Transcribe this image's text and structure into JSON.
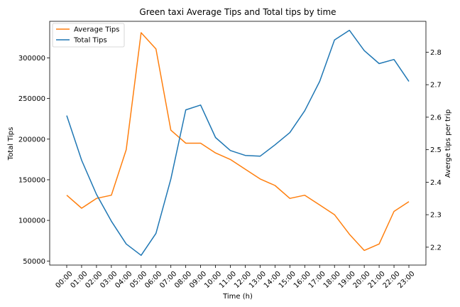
{
  "chart_data": {
    "type": "line",
    "title": "Green taxi Average Tips and Total tips by time",
    "xlabel": "Time (h)",
    "ylabel_left": "Total Tips",
    "ylabel_right": "Averge tips per trip",
    "categories": [
      "00:00",
      "01:00",
      "02:00",
      "03:00",
      "04:00",
      "05:00",
      "06:00",
      "07:00",
      "08:00",
      "09:00",
      "10:00",
      "11:00",
      "12:00",
      "13:00",
      "14:00",
      "15:00",
      "16:00",
      "17:00",
      "18:00",
      "19:00",
      "20:00",
      "21:00",
      "22:00",
      "23:00"
    ],
    "left_axis": {
      "ylim": [
        45000,
        345000
      ],
      "ticks": [
        50000,
        100000,
        150000,
        200000,
        250000,
        300000
      ]
    },
    "right_axis": {
      "ylim": [
        2.145,
        2.895
      ],
      "ticks": [
        2.2,
        2.3,
        2.4,
        2.5,
        2.6,
        2.7,
        2.8
      ]
    },
    "series": [
      {
        "name": "Average Tips",
        "axis": "right",
        "color": "#ff7f0e",
        "values": [
          2.36,
          2.32,
          2.35,
          2.36,
          2.5,
          2.86,
          2.81,
          2.56,
          2.52,
          2.52,
          2.49,
          2.47,
          2.44,
          2.41,
          2.39,
          2.35,
          2.36,
          2.33,
          2.3,
          2.24,
          2.19,
          2.21,
          2.31,
          2.34
        ]
      },
      {
        "name": "Total Tips",
        "axis": "left",
        "color": "#1f77b4",
        "values": [
          229000,
          174000,
          132000,
          99000,
          71000,
          57000,
          84000,
          151000,
          236000,
          242000,
          202000,
          186000,
          180000,
          179000,
          193000,
          208000,
          235000,
          271000,
          322000,
          334000,
          309000,
          293000,
          298000,
          271000
        ]
      }
    ],
    "legend": {
      "position": "top-left",
      "entries": [
        "Average Tips",
        "Total Tips"
      ]
    },
    "grid": false
  }
}
